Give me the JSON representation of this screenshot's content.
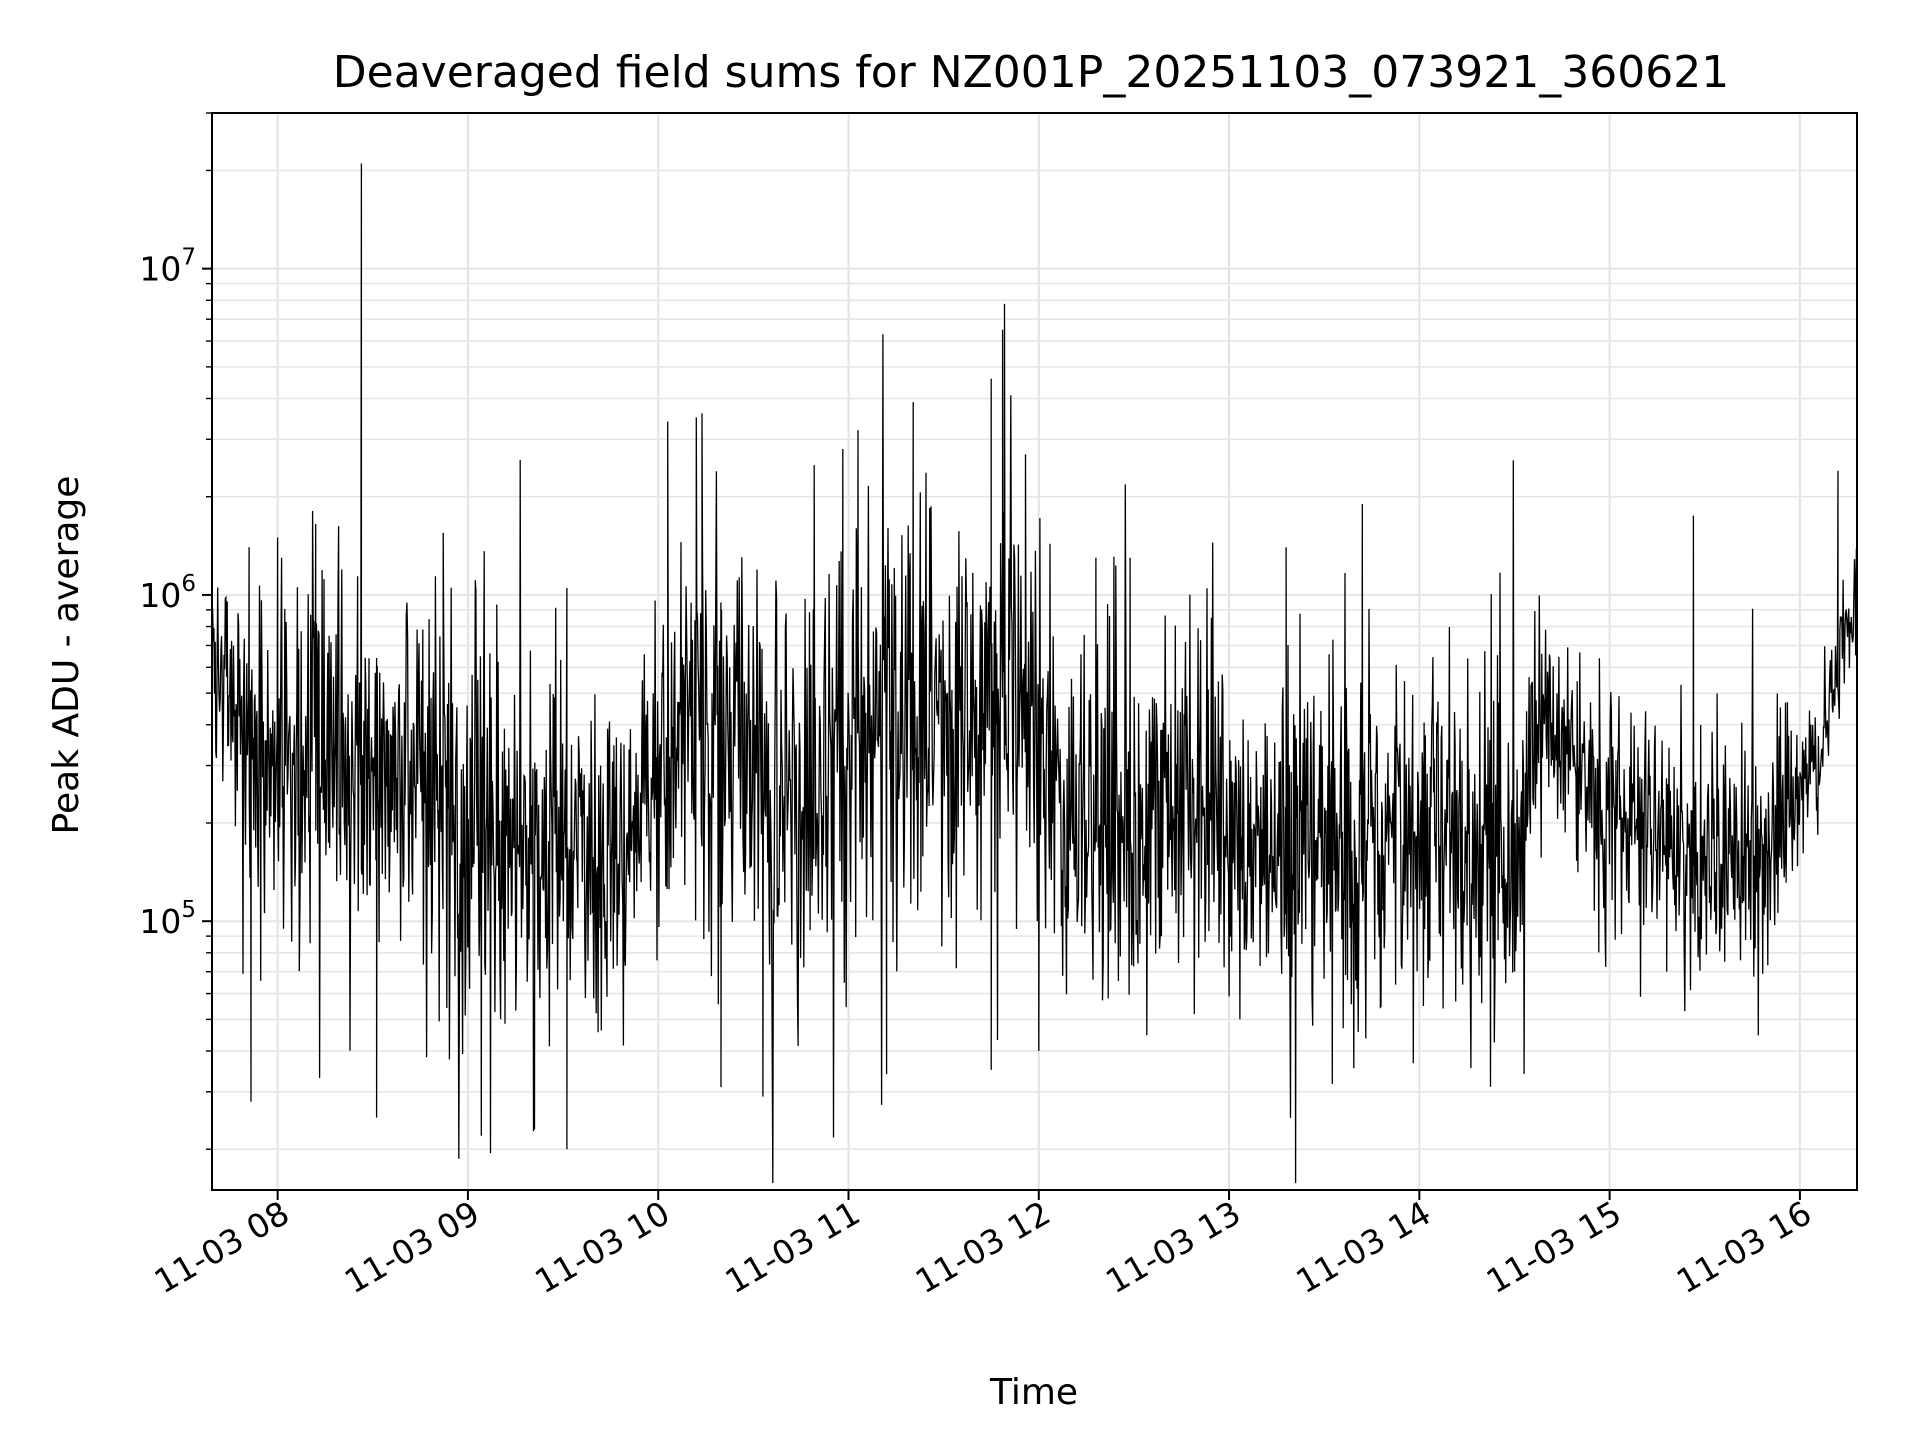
{
  "chart_data": {
    "type": "line",
    "title": "Deaveraged field sums for NZ001P_20251103_073921_360621",
    "xlabel": "Time",
    "ylabel": "Peak ADU - average",
    "yscale": "log",
    "xlim_hours": [
      7.655,
      16.3
    ],
    "ylim": [
      15000,
      30000000
    ],
    "grid": true,
    "line_color": "#000000",
    "x_ticks": [
      {
        "hour": 8,
        "label": "11-03 08"
      },
      {
        "hour": 9,
        "label": "11-03 09"
      },
      {
        "hour": 10,
        "label": "11-03 10"
      },
      {
        "hour": 11,
        "label": "11-03 11"
      },
      {
        "hour": 12,
        "label": "11-03 12"
      },
      {
        "hour": 13,
        "label": "11-03 13"
      },
      {
        "hour": 14,
        "label": "11-03 14"
      },
      {
        "hour": 15,
        "label": "11-03 15"
      },
      {
        "hour": 16,
        "label": "11-03 16"
      }
    ],
    "y_ticks": [
      {
        "value": 100000,
        "base": "10",
        "exp": "5"
      },
      {
        "value": 1000000,
        "base": "10",
        "exp": "6"
      },
      {
        "value": 10000000,
        "base": "10",
        "exp": "7"
      }
    ],
    "series": [
      {
        "name": "deaveraged field sum",
        "envelope": {
          "hours": [
            7.655,
            7.75,
            7.9,
            8.1,
            8.4,
            8.7,
            9.0,
            9.3,
            9.6,
            9.9,
            10.1,
            10.3,
            10.6,
            10.9,
            11.1,
            11.4,
            11.7,
            11.85,
            12.1,
            12.4,
            12.7,
            13.0,
            13.3,
            13.6,
            13.9,
            14.2,
            14.55,
            14.65,
            14.9,
            15.2,
            15.5,
            15.85,
            15.95,
            16.1,
            16.3
          ],
          "median": [
            900000,
            450000,
            350000,
            320000,
            280000,
            260000,
            190000,
            160000,
            160000,
            170000,
            400000,
            380000,
            220000,
            300000,
            500000,
            350000,
            400000,
            600000,
            220000,
            190000,
            200000,
            180000,
            160000,
            190000,
            170000,
            180000,
            160000,
            450000,
            250000,
            180000,
            160000,
            170000,
            250000,
            330000,
            1000000
          ],
          "spread": [
            0.22,
            0.3,
            0.42,
            0.45,
            0.45,
            0.42,
            0.5,
            0.48,
            0.4,
            0.35,
            0.45,
            0.5,
            0.5,
            0.55,
            0.5,
            0.55,
            0.5,
            0.5,
            0.45,
            0.42,
            0.42,
            0.4,
            0.4,
            0.4,
            0.4,
            0.42,
            0.45,
            0.22,
            0.3,
            0.3,
            0.3,
            0.28,
            0.22,
            0.15,
            0.15
          ]
        },
        "spikes": [
          {
            "hour": 8.44,
            "value": 21000000
          },
          {
            "hour": 8.44,
            "value": 2300000
          },
          {
            "hour": 11.82,
            "value": 7800000
          },
          {
            "hour": 11.81,
            "value": 6500000
          },
          {
            "hour": 11.75,
            "value": 4600000
          },
          {
            "hour": 11.34,
            "value": 3900000
          },
          {
            "hour": 10.23,
            "value": 3600000
          },
          {
            "hour": 10.05,
            "value": 3400000
          },
          {
            "hour": 10.2,
            "value": 3500000
          },
          {
            "hour": 11.05,
            "value": 3200000
          },
          {
            "hour": 10.97,
            "value": 2800000
          },
          {
            "hour": 11.93,
            "value": 2700000
          },
          {
            "hour": 10.82,
            "value": 2500000
          },
          {
            "hour": 16.2,
            "value": 2400000
          },
          {
            "hour": 12.48,
            "value": 1300000
          },
          {
            "hour": 13.7,
            "value": 1900000
          },
          {
            "hour": 15.44,
            "value": 1750000
          },
          {
            "hour": 8.2,
            "value": 1650000
          },
          {
            "hour": 8.87,
            "value": 1550000
          },
          {
            "hour": 8.0,
            "value": 1500000
          },
          {
            "hour": 9.52,
            "value": 1050000
          },
          {
            "hour": 13.3,
            "value": 1400000
          },
          {
            "hour": 12.3,
            "value": 1300000
          },
          {
            "hour": 7.85,
            "value": 1400000
          },
          {
            "hour": 9.07,
            "value": 22000
          },
          {
            "hour": 9.52,
            "value": 20000
          },
          {
            "hour": 9.35,
            "value": 23000
          },
          {
            "hour": 8.52,
            "value": 25000
          },
          {
            "hour": 7.86,
            "value": 28000
          },
          {
            "hour": 10.33,
            "value": 31000
          },
          {
            "hour": 10.55,
            "value": 29000
          },
          {
            "hour": 11.2,
            "value": 34000
          },
          {
            "hour": 11.75,
            "value": 35000
          },
          {
            "hour": 12.0,
            "value": 40000
          },
          {
            "hour": 13.6,
            "value": 47000
          },
          {
            "hour": 14.55,
            "value": 50000
          },
          {
            "hour": 15.3,
            "value": 70000
          }
        ]
      }
    ]
  }
}
